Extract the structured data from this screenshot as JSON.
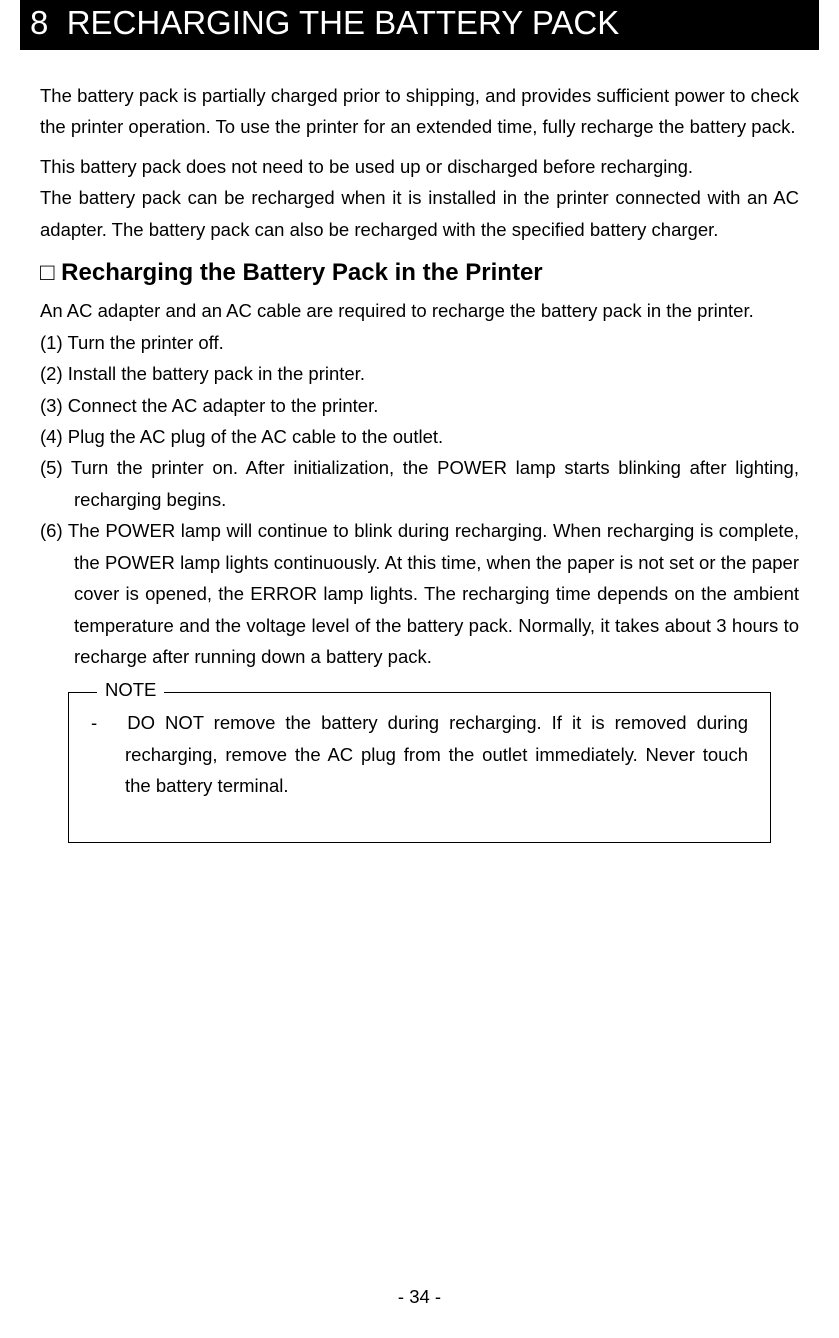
{
  "chapter": {
    "number": "8",
    "title": "RECHARGING THE BATTERY PACK"
  },
  "intro": {
    "p1": "The battery pack is partially charged prior to shipping, and provides sufficient power to check the printer operation.  To use the printer for an extended time, fully recharge the battery pack.",
    "p2": "This battery pack does not need to be used up or discharged before recharging.",
    "p3": "The battery pack can be recharged when it is installed in the printer connected with an AC adapter.  The battery pack can also be recharged with the specified battery charger."
  },
  "section": {
    "bullet": "□",
    "title": "Recharging the Battery Pack in the Printer",
    "lead": "An AC adapter and an AC cable are required to recharge the battery pack in the printer.",
    "items": [
      {
        "num": "(1)",
        "text": "Turn the printer off."
      },
      {
        "num": "(2)",
        "text": "Install the battery pack in the printer."
      },
      {
        "num": "(3)",
        "text": "Connect the AC adapter to the printer."
      },
      {
        "num": "(4)",
        "text": "Plug the AC plug of the AC cable to the outlet."
      },
      {
        "num": "(5)",
        "text": "Turn the printer on.  After initialization, the POWER lamp starts blinking after lighting, recharging begins."
      },
      {
        "num": "(6)",
        "text": "The POWER lamp will continue to blink during recharging. When recharging is complete, the POWER lamp lights continuously.  At this time, when the paper is not set or the paper cover is opened, the ERROR lamp lights. The recharging time depends on the ambient temperature and the voltage level of the battery pack.  Normally, it takes about 3 hours to recharge after running down a battery pack."
      }
    ]
  },
  "note": {
    "label": "NOTE",
    "items": [
      {
        "marker": "-",
        "text": "DO NOT remove the battery during recharging.  If it is removed during recharging, remove the AC plug from the outlet immediately.   Never touch the battery terminal."
      }
    ]
  },
  "footer": {
    "page_number": "- 34 -"
  }
}
